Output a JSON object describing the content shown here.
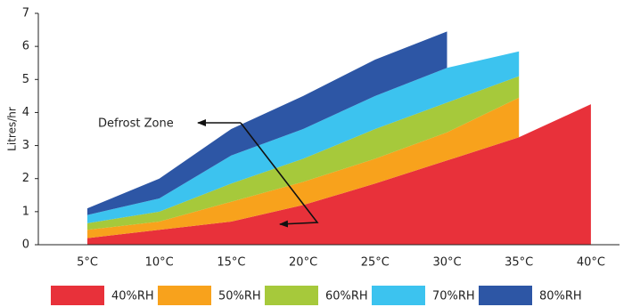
{
  "chart_data": {
    "type": "stacked-area",
    "y_label": "Litres/hr",
    "annotation": "Defrost Zone",
    "categories": [
      "5°C",
      "10°C",
      "15°C",
      "20°C",
      "25°C",
      "30°C",
      "35°C",
      "40°C"
    ],
    "series": [
      {
        "name": "40%RH",
        "color": "#e8313a",
        "values": [
          0.2,
          0.45,
          0.7,
          1.2,
          1.85,
          2.55,
          3.25,
          4.25
        ]
      },
      {
        "name": "50%RH",
        "color": "#f8a21c",
        "values": [
          0.25,
          0.25,
          0.6,
          0.7,
          0.75,
          0.85,
          1.2,
          null
        ]
      },
      {
        "name": "60%RH",
        "color": "#a6c93b",
        "values": [
          0.2,
          0.3,
          0.55,
          0.7,
          0.9,
          0.9,
          0.65,
          null
        ]
      },
      {
        "name": "70%RH",
        "color": "#3cc3ef",
        "values": [
          0.25,
          0.4,
          0.85,
          0.9,
          1.0,
          1.05,
          0.75,
          null
        ]
      },
      {
        "name": "80%RH",
        "color": "#2d56a5",
        "values": [
          0.2,
          0.6,
          0.8,
          1.0,
          1.1,
          1.1,
          null,
          null
        ]
      }
    ],
    "ylim": [
      0,
      7
    ],
    "yticks": [
      0,
      1,
      2,
      3,
      4,
      5,
      6,
      7
    ]
  }
}
